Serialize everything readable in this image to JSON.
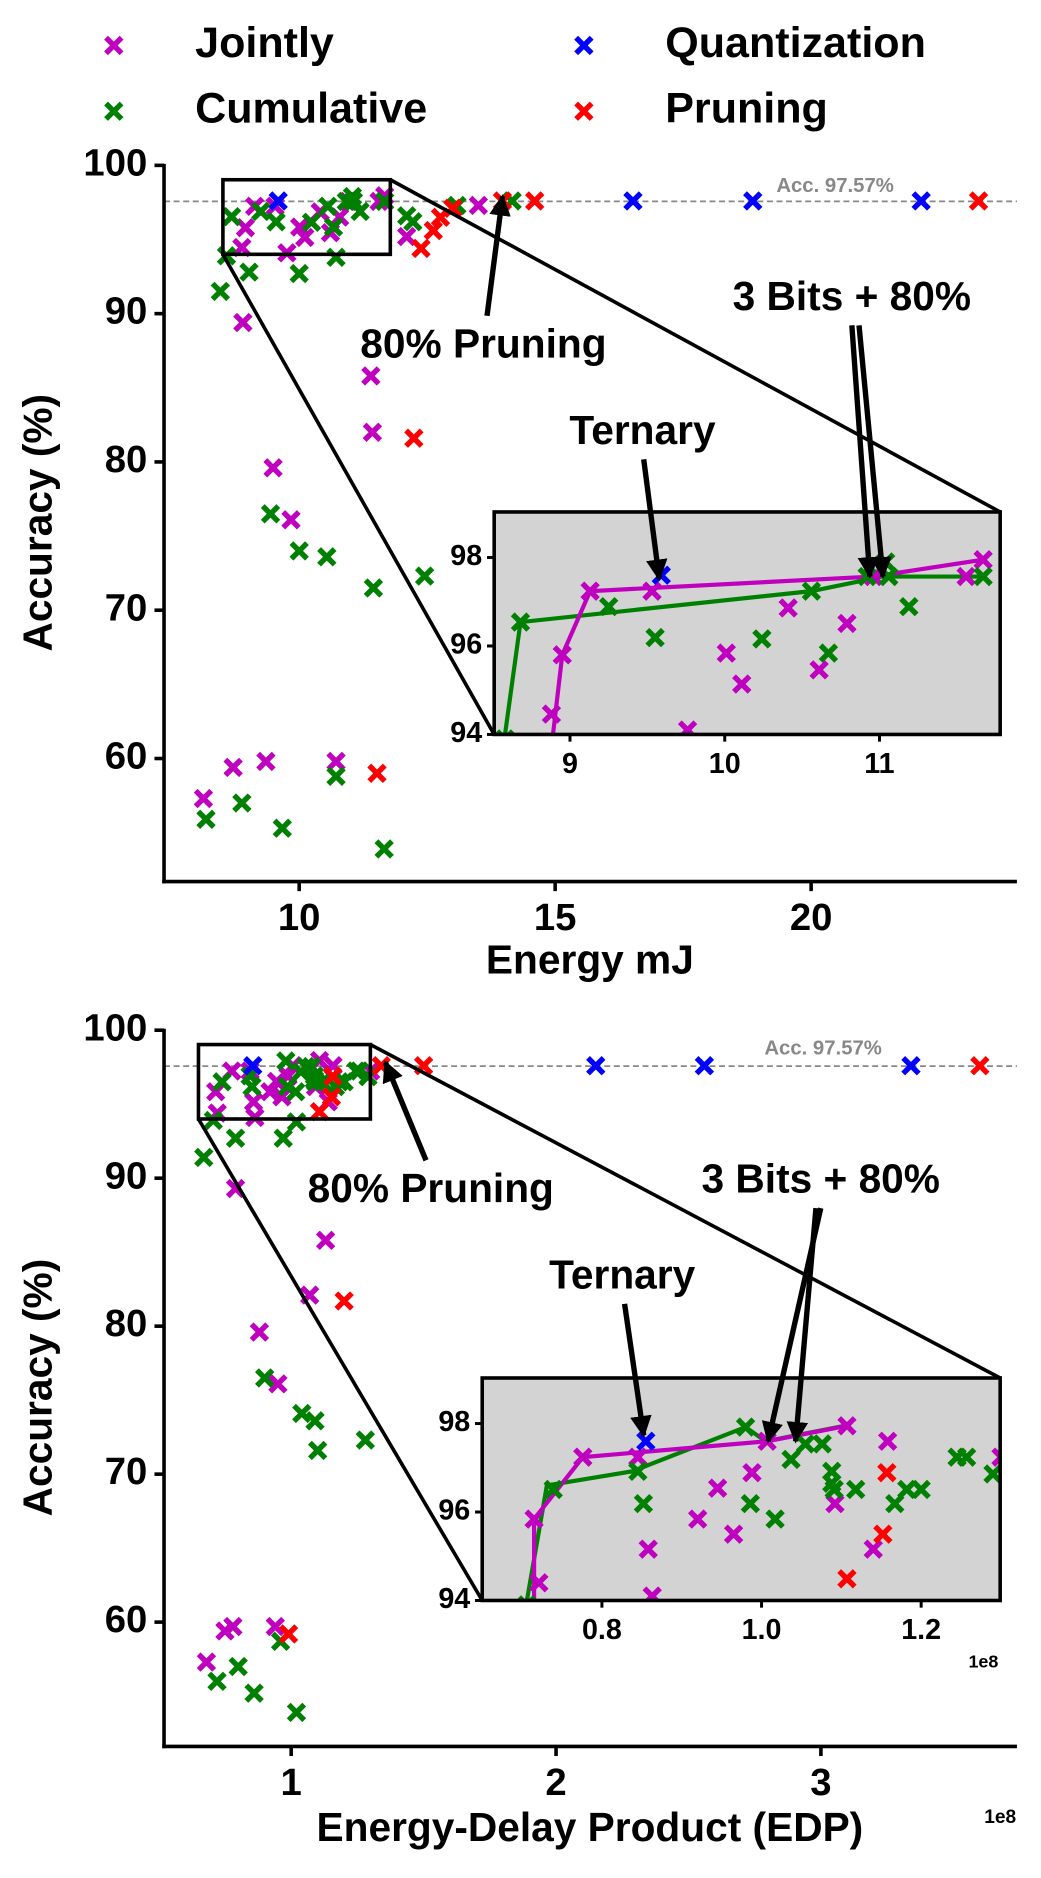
{
  "chart_data": [
    {
      "type": "scatter",
      "xlabel": "Energy mJ",
      "ylabel": "Accuracy (%)",
      "xlim": [
        7.36,
        24.02
      ],
      "ylim": [
        51.7,
        100.1
      ],
      "xticks": [
        10,
        15,
        20
      ],
      "yticks": [
        60,
        70,
        80,
        90,
        100
      ],
      "hline": {
        "value": 97.57,
        "label": "Acc. 97.57%"
      },
      "series": [
        {
          "name": "Jointly",
          "color": "#bf00bf",
          "x": [
            8.13,
            8.71,
            9.35,
            10.72,
            9.49,
            9.84,
            11.4,
            11.43,
            8.9,
            12.1,
            13.5,
            8.88,
            8.95,
            9.13,
            9.53,
            9.76,
            10.01,
            10.11,
            10.41,
            10.61,
            10.79,
            10.96,
            11.56,
            11.67
          ],
          "values": [
            57.3,
            59.4,
            59.8,
            59.8,
            79.6,
            76.1,
            85.8,
            82.0,
            89.4,
            95.2,
            97.3,
            94.46,
            95.8,
            97.24,
            97.24,
            94.1,
            95.84,
            95.14,
            96.86,
            95.46,
            96.51,
            97.57,
            97.57,
            97.95
          ]
        },
        {
          "name": "Cumulative",
          "color": "#008000",
          "x": [
            8.18,
            8.88,
            9.67,
            10.72,
            11.66,
            9.44,
            10.0,
            10.54,
            11.45,
            12.45,
            8.46,
            9.02,
            10.0,
            10.72,
            12.1,
            12.22,
            13.08,
            14.16,
            8.58,
            8.68,
            9.25,
            9.55,
            10.24,
            10.56,
            10.67,
            10.92,
            11.04,
            11.06,
            11.19,
            11.67
          ],
          "values": [
            55.9,
            57.0,
            55.3,
            58.8,
            53.9,
            76.5,
            74.0,
            73.6,
            71.5,
            72.3,
            91.5,
            92.8,
            92.7,
            93.8,
            96.6,
            96.2,
            97.3,
            97.6,
            93.9,
            96.54,
            96.89,
            96.19,
            96.16,
            97.24,
            95.84,
            97.57,
            97.9,
            97.57,
            96.89,
            97.57
          ]
        },
        {
          "name": "Quantization",
          "color": "#0000ff",
          "x": [
            9.59,
            16.52,
            18.86,
            22.15
          ],
          "values": [
            97.6,
            97.6,
            97.6,
            97.6
          ]
        },
        {
          "name": "Pruning",
          "color": "#ff0000",
          "x": [
            12.24,
            11.52,
            12.38,
            12.62,
            12.76,
            13.0,
            13.97,
            14.6,
            23.27
          ],
          "values": [
            81.6,
            59.0,
            94.4,
            95.6,
            96.5,
            97.1,
            97.6,
            97.6,
            97.6
          ]
        }
      ],
      "annotations": [
        {
          "text": "80% Pruning"
        },
        {
          "text": "3 Bits + 80%"
        },
        {
          "text": "Ternary"
        }
      ],
      "inset": {
        "xlim": [
          8.51,
          11.78
        ],
        "ylim": [
          94,
          99.03
        ],
        "xticks": [
          9,
          10,
          11
        ],
        "yticks": [
          94,
          96,
          98
        ],
        "lines": [
          {
            "color": "#008000",
            "x": [
              8.58,
              8.68,
              10.56,
              11.02,
              11.67
            ],
            "values": [
              94.0,
              96.54,
              97.24,
              97.57,
              97.57
            ]
          },
          {
            "color": "#bf00bf",
            "x": [
              8.89,
              8.95,
              9.13,
              10.96,
              11.67
            ],
            "values": [
              94.0,
              95.8,
              97.24,
              97.57,
              97.95
            ]
          }
        ]
      }
    },
    {
      "type": "scatter",
      "xlabel": "Energy-Delay Product (EDP)",
      "ylabel": "Accuracy (%)",
      "x_offset": "1e8",
      "xlim": [
        0.52,
        3.74
      ],
      "ylim": [
        51.6,
        100.1
      ],
      "xticks": [
        1,
        2,
        3
      ],
      "yticks": [
        60,
        70,
        80,
        90,
        100
      ],
      "hline": {
        "value": 97.57,
        "label": "Acc. 97.57%"
      },
      "series": [
        {
          "color": "#bf00bf",
          "x": [
            0.68,
            0.75,
            0.78,
            0.94,
            0.79,
            0.88,
            0.95,
            1.07,
            1.13,
            0.715,
            0.721,
            0.776,
            0.845,
            0.858,
            0.863,
            0.92,
            0.945,
            0.965,
            0.988,
            1.007,
            1.092,
            1.107,
            1.14,
            1.158,
            1.3
          ],
          "values": [
            57.3,
            59.4,
            59.7,
            59.7,
            89.3,
            79.6,
            76.1,
            82.1,
            85.8,
            95.84,
            94.4,
            97.24,
            97.24,
            95.16,
            94.1,
            95.84,
            96.54,
            95.5,
            96.89,
            97.6,
            96.19,
            97.95,
            95.16,
            97.6,
            97.24
          ]
        },
        {
          "color": "#008000",
          "x": [
            0.72,
            0.8,
            0.86,
            0.96,
            1.02,
            0.9,
            1.04,
            1.09,
            1.1,
            1.28,
            0.67,
            0.79,
            0.97,
            1.02,
            0.706,
            0.739,
            0.845,
            0.852,
            0.98,
            0.986,
            1.017,
            1.037,
            1.055,
            1.076,
            1.088,
            1.088,
            1.091,
            1.118,
            1.167,
            1.182,
            1.2,
            1.245,
            1.257,
            1.29
          ],
          "values": [
            56.0,
            57.0,
            55.2,
            58.7,
            53.9,
            76.5,
            74.1,
            73.6,
            71.6,
            72.3,
            91.4,
            92.7,
            92.7,
            93.8,
            93.9,
            96.51,
            96.92,
            96.19,
            97.92,
            96.19,
            95.84,
            97.19,
            97.54,
            97.54,
            96.92,
            96.65,
            96.51,
            96.51,
            96.19,
            96.51,
            96.51,
            97.24,
            97.24,
            96.86
          ]
        },
        {
          "color": "#0000ff",
          "x": [
            0.855,
            2.15,
            2.56,
            3.34
          ],
          "values": [
            97.6,
            97.6,
            97.6,
            97.6
          ]
        },
        {
          "color": "#ff0000",
          "x": [
            1.2,
            0.99,
            1.157,
            1.152,
            1.107,
            1.34,
            1.5,
            3.6
          ],
          "values": [
            81.7,
            59.2,
            96.89,
            95.5,
            94.49,
            97.6,
            97.6,
            97.6
          ]
        }
      ],
      "annotations": [
        {
          "text": "80% Pruning"
        },
        {
          "text": "3 Bits + 80%"
        },
        {
          "text": "Ternary"
        }
      ],
      "inset": {
        "xlim": [
          0.65,
          1.299
        ],
        "ylim": [
          94,
          99.03
        ],
        "x_offset": "1e8",
        "xticks": [
          0.8,
          {
            "value": 1,
            "label": "1.0"
          },
          1.2
        ],
        "yticks": [
          94,
          96,
          98
        ],
        "lines": [
          {
            "color": "#008000",
            "x": [
              0.706,
              0.731,
              0.838,
              0.98,
              1.005,
              1.104
            ],
            "values": [
              94.0,
              96.6,
              96.92,
              97.92,
              97.6,
              97.95
            ]
          },
          {
            "color": "#bf00bf",
            "x": [
              0.715,
              0.715,
              0.776,
              1.007,
              1.107
            ],
            "values": [
              94.0,
              95.84,
              97.24,
              97.6,
              97.95
            ]
          }
        ]
      }
    }
  ]
}
